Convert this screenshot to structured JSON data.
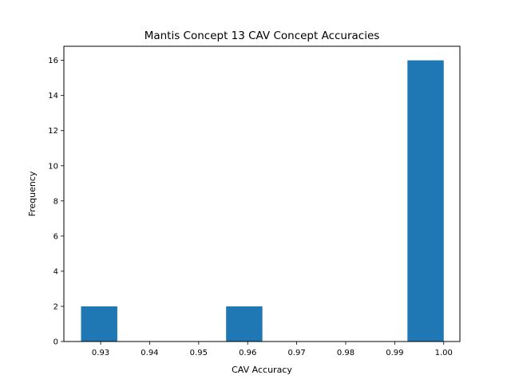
{
  "chart_data": {
    "type": "bar",
    "title": "Mantis Concept 13 CAV Concept Accuracies",
    "xlabel": "CAV Accuracy",
    "ylabel": "Frequency",
    "xlim": [
      0.9225,
      1.0033
    ],
    "ylim": [
      0,
      16.8
    ],
    "x_ticks": [
      0.93,
      0.94,
      0.95,
      0.96,
      0.97,
      0.98,
      0.99,
      1.0
    ],
    "x_tick_labels": [
      "0.93",
      "0.94",
      "0.95",
      "0.96",
      "0.97",
      "0.98",
      "0.99",
      "1.00"
    ],
    "y_ticks": [
      0,
      2,
      4,
      6,
      8,
      10,
      12,
      14,
      16
    ],
    "y_tick_labels": [
      "0",
      "2",
      "4",
      "6",
      "8",
      "10",
      "12",
      "14",
      "16"
    ],
    "bins": [
      {
        "start": 0.926,
        "end": 0.9334,
        "count": 2
      },
      {
        "start": 0.9334,
        "end": 0.9408,
        "count": 0
      },
      {
        "start": 0.9408,
        "end": 0.9482,
        "count": 0
      },
      {
        "start": 0.9482,
        "end": 0.9556,
        "count": 0
      },
      {
        "start": 0.9556,
        "end": 0.963,
        "count": 2
      },
      {
        "start": 0.963,
        "end": 0.9704,
        "count": 0
      },
      {
        "start": 0.9704,
        "end": 0.9778,
        "count": 0
      },
      {
        "start": 0.9778,
        "end": 0.9852,
        "count": 0
      },
      {
        "start": 0.9852,
        "end": 0.9926,
        "count": 0
      },
      {
        "start": 0.9926,
        "end": 1.0,
        "count": 16
      }
    ],
    "bar_color": "#1f77b4",
    "grid": false,
    "legend": "none"
  }
}
